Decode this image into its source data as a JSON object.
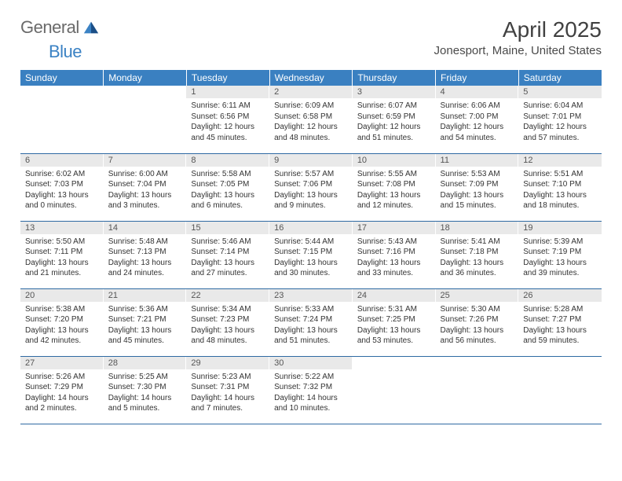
{
  "logo": {
    "general": "General",
    "blue": "Blue"
  },
  "title": "April 2025",
  "location": "Jonesport, Maine, United States",
  "colors": {
    "header_bg": "#3a80c1",
    "header_fg": "#ffffff",
    "daynum_bg": "#e9e9e9",
    "rule": "#2f6aa3",
    "logo_gray": "#6a6a6a",
    "logo_blue": "#3b82c4"
  },
  "weekdays": [
    "Sunday",
    "Monday",
    "Tuesday",
    "Wednesday",
    "Thursday",
    "Friday",
    "Saturday"
  ],
  "weeks": [
    [
      {
        "n": "",
        "l": []
      },
      {
        "n": "",
        "l": []
      },
      {
        "n": "1",
        "l": [
          "Sunrise: 6:11 AM",
          "Sunset: 6:56 PM",
          "Daylight: 12 hours",
          "and 45 minutes."
        ]
      },
      {
        "n": "2",
        "l": [
          "Sunrise: 6:09 AM",
          "Sunset: 6:58 PM",
          "Daylight: 12 hours",
          "and 48 minutes."
        ]
      },
      {
        "n": "3",
        "l": [
          "Sunrise: 6:07 AM",
          "Sunset: 6:59 PM",
          "Daylight: 12 hours",
          "and 51 minutes."
        ]
      },
      {
        "n": "4",
        "l": [
          "Sunrise: 6:06 AM",
          "Sunset: 7:00 PM",
          "Daylight: 12 hours",
          "and 54 minutes."
        ]
      },
      {
        "n": "5",
        "l": [
          "Sunrise: 6:04 AM",
          "Sunset: 7:01 PM",
          "Daylight: 12 hours",
          "and 57 minutes."
        ]
      }
    ],
    [
      {
        "n": "6",
        "l": [
          "Sunrise: 6:02 AM",
          "Sunset: 7:03 PM",
          "Daylight: 13 hours",
          "and 0 minutes."
        ]
      },
      {
        "n": "7",
        "l": [
          "Sunrise: 6:00 AM",
          "Sunset: 7:04 PM",
          "Daylight: 13 hours",
          "and 3 minutes."
        ]
      },
      {
        "n": "8",
        "l": [
          "Sunrise: 5:58 AM",
          "Sunset: 7:05 PM",
          "Daylight: 13 hours",
          "and 6 minutes."
        ]
      },
      {
        "n": "9",
        "l": [
          "Sunrise: 5:57 AM",
          "Sunset: 7:06 PM",
          "Daylight: 13 hours",
          "and 9 minutes."
        ]
      },
      {
        "n": "10",
        "l": [
          "Sunrise: 5:55 AM",
          "Sunset: 7:08 PM",
          "Daylight: 13 hours",
          "and 12 minutes."
        ]
      },
      {
        "n": "11",
        "l": [
          "Sunrise: 5:53 AM",
          "Sunset: 7:09 PM",
          "Daylight: 13 hours",
          "and 15 minutes."
        ]
      },
      {
        "n": "12",
        "l": [
          "Sunrise: 5:51 AM",
          "Sunset: 7:10 PM",
          "Daylight: 13 hours",
          "and 18 minutes."
        ]
      }
    ],
    [
      {
        "n": "13",
        "l": [
          "Sunrise: 5:50 AM",
          "Sunset: 7:11 PM",
          "Daylight: 13 hours",
          "and 21 minutes."
        ]
      },
      {
        "n": "14",
        "l": [
          "Sunrise: 5:48 AM",
          "Sunset: 7:13 PM",
          "Daylight: 13 hours",
          "and 24 minutes."
        ]
      },
      {
        "n": "15",
        "l": [
          "Sunrise: 5:46 AM",
          "Sunset: 7:14 PM",
          "Daylight: 13 hours",
          "and 27 minutes."
        ]
      },
      {
        "n": "16",
        "l": [
          "Sunrise: 5:44 AM",
          "Sunset: 7:15 PM",
          "Daylight: 13 hours",
          "and 30 minutes."
        ]
      },
      {
        "n": "17",
        "l": [
          "Sunrise: 5:43 AM",
          "Sunset: 7:16 PM",
          "Daylight: 13 hours",
          "and 33 minutes."
        ]
      },
      {
        "n": "18",
        "l": [
          "Sunrise: 5:41 AM",
          "Sunset: 7:18 PM",
          "Daylight: 13 hours",
          "and 36 minutes."
        ]
      },
      {
        "n": "19",
        "l": [
          "Sunrise: 5:39 AM",
          "Sunset: 7:19 PM",
          "Daylight: 13 hours",
          "and 39 minutes."
        ]
      }
    ],
    [
      {
        "n": "20",
        "l": [
          "Sunrise: 5:38 AM",
          "Sunset: 7:20 PM",
          "Daylight: 13 hours",
          "and 42 minutes."
        ]
      },
      {
        "n": "21",
        "l": [
          "Sunrise: 5:36 AM",
          "Sunset: 7:21 PM",
          "Daylight: 13 hours",
          "and 45 minutes."
        ]
      },
      {
        "n": "22",
        "l": [
          "Sunrise: 5:34 AM",
          "Sunset: 7:23 PM",
          "Daylight: 13 hours",
          "and 48 minutes."
        ]
      },
      {
        "n": "23",
        "l": [
          "Sunrise: 5:33 AM",
          "Sunset: 7:24 PM",
          "Daylight: 13 hours",
          "and 51 minutes."
        ]
      },
      {
        "n": "24",
        "l": [
          "Sunrise: 5:31 AM",
          "Sunset: 7:25 PM",
          "Daylight: 13 hours",
          "and 53 minutes."
        ]
      },
      {
        "n": "25",
        "l": [
          "Sunrise: 5:30 AM",
          "Sunset: 7:26 PM",
          "Daylight: 13 hours",
          "and 56 minutes."
        ]
      },
      {
        "n": "26",
        "l": [
          "Sunrise: 5:28 AM",
          "Sunset: 7:27 PM",
          "Daylight: 13 hours",
          "and 59 minutes."
        ]
      }
    ],
    [
      {
        "n": "27",
        "l": [
          "Sunrise: 5:26 AM",
          "Sunset: 7:29 PM",
          "Daylight: 14 hours",
          "and 2 minutes."
        ]
      },
      {
        "n": "28",
        "l": [
          "Sunrise: 5:25 AM",
          "Sunset: 7:30 PM",
          "Daylight: 14 hours",
          "and 5 minutes."
        ]
      },
      {
        "n": "29",
        "l": [
          "Sunrise: 5:23 AM",
          "Sunset: 7:31 PM",
          "Daylight: 14 hours",
          "and 7 minutes."
        ]
      },
      {
        "n": "30",
        "l": [
          "Sunrise: 5:22 AM",
          "Sunset: 7:32 PM",
          "Daylight: 14 hours",
          "and 10 minutes."
        ]
      },
      {
        "n": "",
        "l": []
      },
      {
        "n": "",
        "l": []
      },
      {
        "n": "",
        "l": []
      }
    ]
  ]
}
